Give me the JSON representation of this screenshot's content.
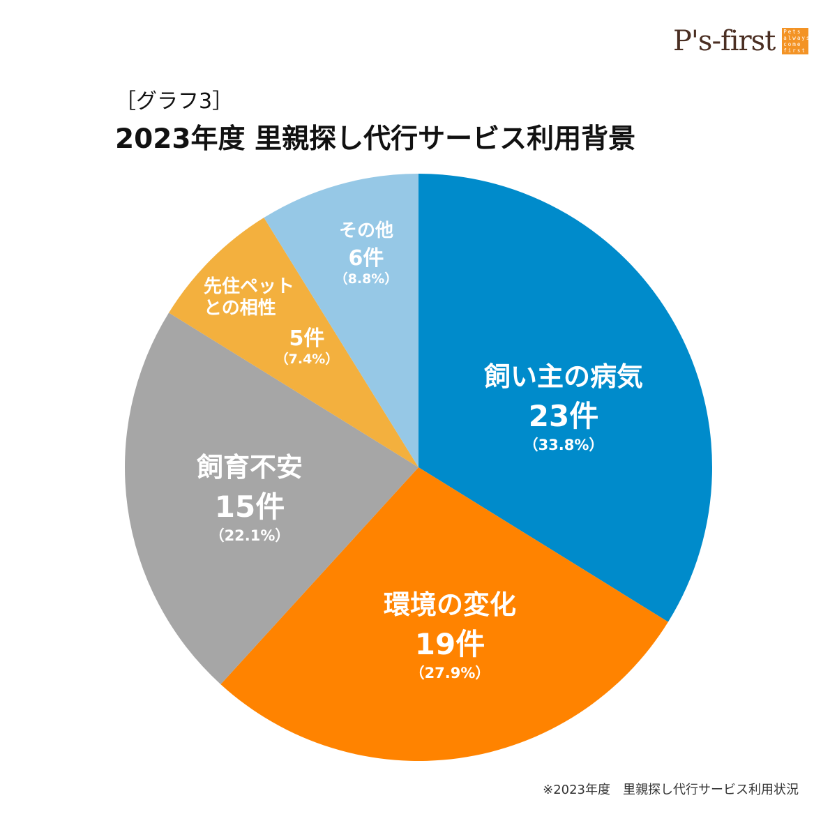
{
  "logo": {
    "text": "P's-first",
    "box_text": "Pets always come first"
  },
  "header": {
    "subtitle": "［グラフ3］",
    "title": "2023年度 里親探し代行サービス利用背景"
  },
  "footnote": "※2023年度　里親探し代行サービス利用状況",
  "chart_data": {
    "type": "pie",
    "start": "top",
    "direction": "clockwise",
    "slices": [
      {
        "label": "飼い主の病気",
        "count": 23,
        "count_label": "23件",
        "percent_label": "（33.8%）",
        "color": "#008BCB"
      },
      {
        "label": "環境の変化",
        "count": 19,
        "count_label": "19件",
        "percent_label": "（27.9%）",
        "color": "#FF8300"
      },
      {
        "label": "飼育不安",
        "count": 15,
        "count_label": "15件",
        "percent_label": "（22.1%）",
        "color": "#A6A6A6"
      },
      {
        "label": "先住ペットとの相性",
        "label_lines": [
          "先住ペット",
          "との相性"
        ],
        "count": 5,
        "count_label": "5件",
        "percent_label": "（7.4%）",
        "color": "#F3B03E"
      },
      {
        "label": "その他",
        "count": 6,
        "count_label": "6件",
        "percent_label": "（8.8%）",
        "color": "#96C8E6"
      }
    ]
  }
}
